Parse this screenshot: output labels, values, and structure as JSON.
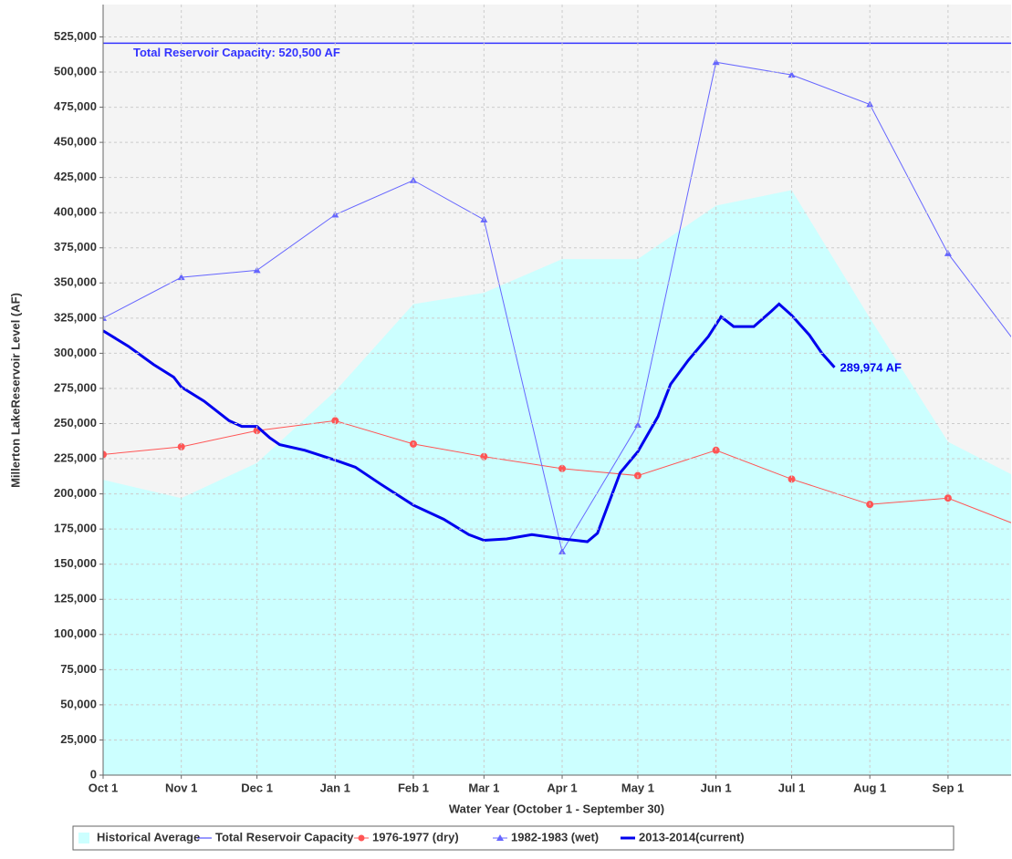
{
  "chart_data": {
    "type": "line",
    "y_label": "Millerton LakeReservoir Level (AF)",
    "x_label": "Water Year (October 1 - September 30)",
    "xlim": [
      0,
      360
    ],
    "ylim": [
      0,
      548000
    ],
    "grid": true,
    "legend": "bottom",
    "xticks": [
      {
        "value": 0,
        "label": "Oct 1"
      },
      {
        "value": 31,
        "label": "Nov 1"
      },
      {
        "value": 61,
        "label": "Dec 1"
      },
      {
        "value": 92,
        "label": "Jan 1"
      },
      {
        "value": 123,
        "label": "Feb 1"
      },
      {
        "value": 151,
        "label": "Mar 1"
      },
      {
        "value": 182,
        "label": "Apr 1"
      },
      {
        "value": 212,
        "label": "May 1"
      },
      {
        "value": 243,
        "label": "Jun 1"
      },
      {
        "value": 273,
        "label": "Jul 1"
      },
      {
        "value": 304,
        "label": "Aug 1"
      },
      {
        "value": 335,
        "label": "Sep 1"
      }
    ],
    "yticks": [
      {
        "value": 0,
        "label": "0"
      },
      {
        "value": 25000,
        "label": "25,000"
      },
      {
        "value": 50000,
        "label": "50,000"
      },
      {
        "value": 75000,
        "label": "75,000"
      },
      {
        "value": 100000,
        "label": "100,000"
      },
      {
        "value": 125000,
        "label": "125,000"
      },
      {
        "value": 150000,
        "label": "150,000"
      },
      {
        "value": 175000,
        "label": "175,000"
      },
      {
        "value": 200000,
        "label": "200,000"
      },
      {
        "value": 225000,
        "label": "225,000"
      },
      {
        "value": 250000,
        "label": "250,000"
      },
      {
        "value": 275000,
        "label": "275,000"
      },
      {
        "value": 300000,
        "label": "300,000"
      },
      {
        "value": 325000,
        "label": "325,000"
      },
      {
        "value": 350000,
        "label": "350,000"
      },
      {
        "value": 375000,
        "label": "375,000"
      },
      {
        "value": 400000,
        "label": "400,000"
      },
      {
        "value": 425000,
        "label": "425,000"
      },
      {
        "value": 450000,
        "label": "450,000"
      },
      {
        "value": 475000,
        "label": "475,000"
      },
      {
        "value": 500000,
        "label": "500,000"
      },
      {
        "value": 525000,
        "label": "525,000"
      }
    ],
    "series": [
      {
        "name": "Historical Average",
        "style": "area",
        "color": "#ccffff",
        "x": [
          0,
          31,
          61,
          92,
          123,
          151,
          182,
          212,
          243,
          273,
          304,
          335,
          360
        ],
        "values": [
          210000,
          197000,
          222000,
          273000,
          335000,
          343000,
          367000,
          367000,
          405000,
          416000,
          325000,
          237000,
          214000
        ]
      },
      {
        "name": "Total Reservoir Capacity",
        "style": "hline",
        "color": "#3333ff",
        "value": 520500,
        "label": "Total Reservoir Capacity: 520,500 AF"
      },
      {
        "name": "1976-1977 (dry)",
        "style": "circle",
        "color": "#ff5555",
        "x": [
          0,
          31,
          61,
          92,
          123,
          151,
          182,
          212,
          243,
          273,
          304,
          335,
          365
        ],
        "values": [
          228000,
          233500,
          245000,
          252000,
          235500,
          226500,
          218000,
          213000,
          231000,
          210500,
          192500,
          197000,
          176000
        ]
      },
      {
        "name": "1982-1983 (wet)",
        "style": "triangle",
        "color": "#6666ff",
        "x": [
          0,
          31,
          61,
          92,
          123,
          151,
          182,
          212,
          243,
          273,
          304,
          335,
          365
        ],
        "values": [
          325000,
          354000,
          359000,
          398500,
          423000,
          395000,
          159000,
          249000,
          507000,
          498000,
          477000,
          371000,
          300000
        ]
      },
      {
        "name": "2013-2014(current)",
        "style": "thick",
        "color": "#0000ee",
        "x": [
          0,
          10,
          20,
          28,
          31,
          40,
          50,
          55,
          61,
          66,
          70,
          80,
          92,
          100,
          110,
          123,
          135,
          145,
          151,
          160,
          170,
          182,
          192,
          196,
          205,
          212,
          220,
          225,
          232,
          240,
          245,
          250,
          258,
          265,
          268,
          273,
          280,
          285,
          290
        ],
        "values": [
          316000,
          305000,
          292000,
          283000,
          276000,
          266000,
          252000,
          248000,
          248000,
          240000,
          235000,
          231000,
          224000,
          219000,
          207000,
          192000,
          182000,
          171000,
          167000,
          168000,
          171000,
          168000,
          166000,
          172000,
          215000,
          230000,
          255000,
          278000,
          295000,
          312000,
          326000,
          319000,
          319000,
          330000,
          335000,
          327000,
          313000,
          300000,
          289974
        ],
        "end_label": "289,974 AF"
      }
    ]
  }
}
